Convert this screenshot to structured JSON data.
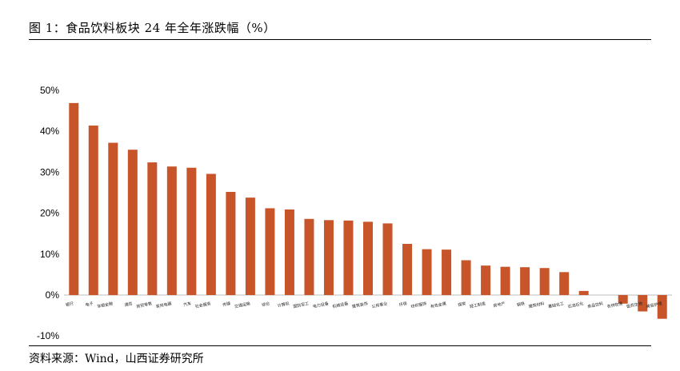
{
  "figure": {
    "title": "图 1：食品饮料板块 24 年全年涨跌幅（%）",
    "source": "资料来源：Wind，山西证券研究所"
  },
  "chart_data": {
    "type": "bar",
    "title": "",
    "xlabel": "",
    "ylabel": "",
    "ylim": [
      -10,
      50
    ],
    "yticks": [
      "-10%",
      "0%",
      "10%",
      "20%",
      "30%",
      "40%",
      "50%"
    ],
    "ytick_values": [
      -10,
      0,
      10,
      20,
      30,
      40,
      50
    ],
    "grid": false,
    "legend": "none",
    "bar_color": "#C8552A",
    "categories": [
      "银行",
      "电子",
      "非银金融",
      "通信",
      "商贸零售",
      "家用电器",
      "汽车",
      "社会服务",
      "传媒",
      "交通运输",
      "综合",
      "计算机",
      "国防军工",
      "电力设备",
      "机械设备",
      "建筑装饰",
      "公用事业",
      "环保",
      "纺织服饰",
      "有色金属",
      "煤炭",
      "轻工制造",
      "房地产",
      "钢铁",
      "建筑材料",
      "基础化工",
      "石油石化",
      "食品饮料",
      "农林牧渔",
      "医药生物",
      "美容护理"
    ],
    "values": [
      46.9,
      41.4,
      37.2,
      35.5,
      32.4,
      31.4,
      31.1,
      29.6,
      25.2,
      23.8,
      21.2,
      20.9,
      18.6,
      18.3,
      18.2,
      17.9,
      17.5,
      12.5,
      11.2,
      11.1,
      8.5,
      7.2,
      6.9,
      6.8,
      6.6,
      5.6,
      1.0,
      0.0,
      -2.1,
      -4.0,
      -5.8
    ]
  }
}
